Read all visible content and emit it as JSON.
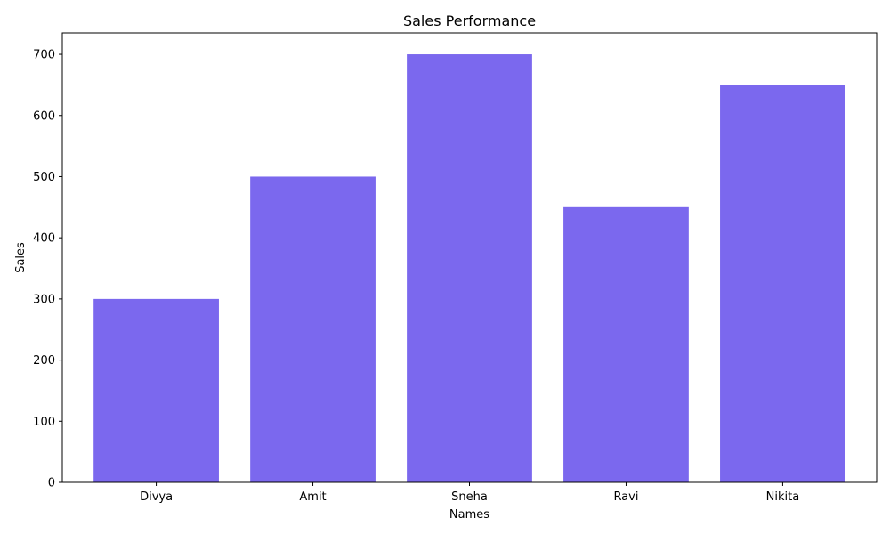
{
  "chart_data": {
    "type": "bar",
    "title": "Sales Performance",
    "xlabel": "Names",
    "ylabel": "Sales",
    "categories": [
      "Divya",
      "Amit",
      "Sneha",
      "Ravi",
      "Nikita"
    ],
    "values": [
      300,
      500,
      700,
      450,
      650
    ],
    "ylim": [
      0,
      735
    ],
    "yticks": [
      0,
      100,
      200,
      300,
      400,
      500,
      600,
      700
    ],
    "bar_color": "#7b68ee",
    "grid": false,
    "legend": "none"
  }
}
